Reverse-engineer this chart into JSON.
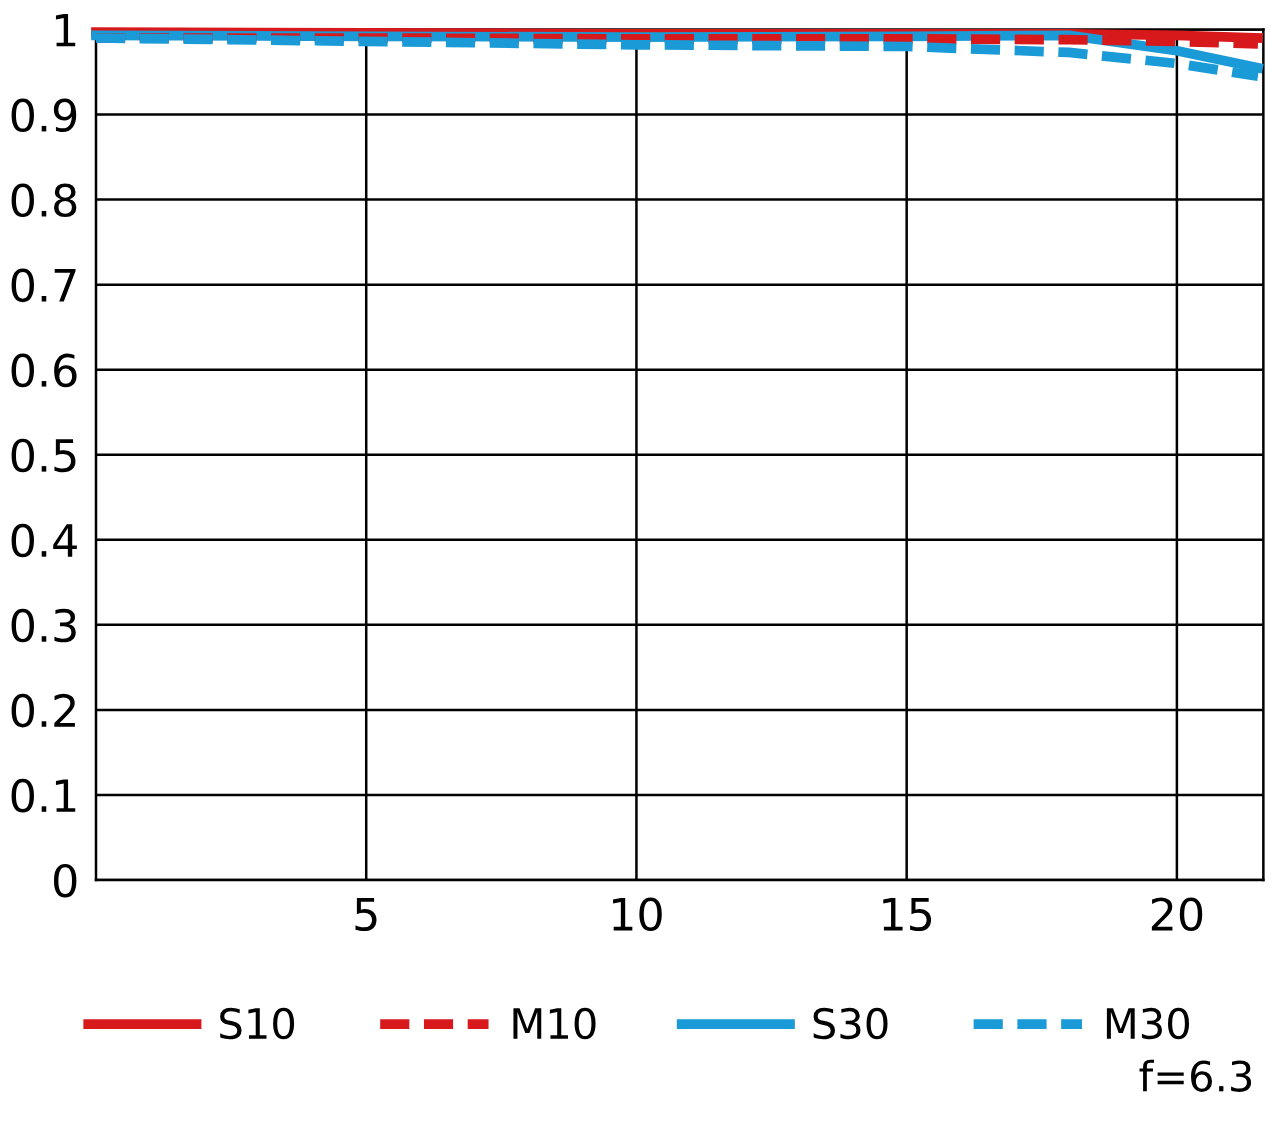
{
  "chart_data": {
    "type": "line",
    "x": [
      0,
      5,
      10,
      15,
      18,
      20,
      21.5
    ],
    "xlim": [
      0,
      21.6
    ],
    "xticks": [
      5,
      10,
      15,
      20
    ],
    "ylim": [
      0,
      1
    ],
    "yticks": [
      0,
      0.1,
      0.2,
      0.3,
      0.4,
      0.5,
      0.6,
      0.7,
      0.8,
      0.9,
      1
    ],
    "grid": true,
    "legend": "bottom",
    "annotations": [
      "f=6.3"
    ],
    "series": [
      {
        "name": "S10",
        "color": "#d7191c",
        "line_style": "solid",
        "values": [
          0.997,
          0.996,
          0.995,
          0.995,
          0.995,
          0.993,
          0.99
        ]
      },
      {
        "name": "M10",
        "color": "#d7191c",
        "line_style": "dashed",
        "values": [
          0.99,
          0.99,
          0.989,
          0.989,
          0.988,
          0.986,
          0.983
        ]
      },
      {
        "name": "S30",
        "color": "#1a9ad6",
        "line_style": "solid",
        "values": [
          0.993,
          0.992,
          0.991,
          0.992,
          0.993,
          0.975,
          0.955
        ]
      },
      {
        "name": "M30",
        "color": "#1a9ad6",
        "line_style": "dashed",
        "values": [
          0.99,
          0.986,
          0.982,
          0.98,
          0.973,
          0.96,
          0.945
        ]
      }
    ]
  }
}
